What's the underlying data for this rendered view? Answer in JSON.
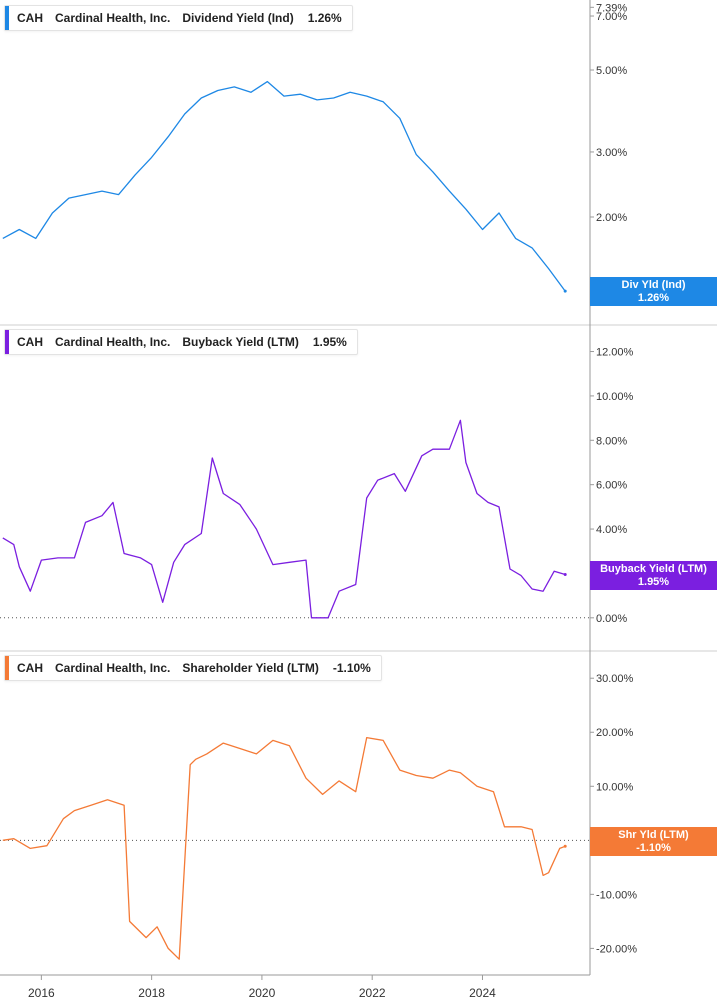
{
  "chart_data": {
    "type": "line",
    "x_ticks": [
      "2016",
      "2018",
      "2020",
      "2022",
      "2024"
    ],
    "panels": [
      {
        "ticker": "CAH",
        "company": "Cardinal Health, Inc.",
        "metric": "Dividend Yield (Ind)",
        "last_value": "1.26%",
        "tag_label": "Div Yld (Ind)",
        "tag_value": "1.26%",
        "color": "#1e88e5",
        "scale": "log",
        "y_ticks": [
          "7.39%",
          "7.00%",
          "5.00%",
          "3.00%",
          "2.00%"
        ],
        "y_tick_values": [
          7.39,
          7.0,
          5.0,
          3.0,
          2.0
        ],
        "series": {
          "x": [
            2015.3,
            2015.6,
            2015.9,
            2016.2,
            2016.5,
            2016.8,
            2017.1,
            2017.4,
            2017.7,
            2018.0,
            2018.3,
            2018.6,
            2018.9,
            2019.2,
            2019.5,
            2019.8,
            2020.1,
            2020.4,
            2020.7,
            2021.0,
            2021.3,
            2021.6,
            2021.9,
            2022.2,
            2022.5,
            2022.8,
            2023.1,
            2023.4,
            2023.7,
            2024.0,
            2024.3,
            2024.6,
            2024.9,
            2025.2,
            2025.5
          ],
          "y": [
            1.75,
            1.85,
            1.75,
            2.05,
            2.25,
            2.3,
            2.35,
            2.3,
            2.6,
            2.9,
            3.3,
            3.8,
            4.2,
            4.4,
            4.5,
            4.35,
            4.65,
            4.25,
            4.3,
            4.15,
            4.2,
            4.35,
            4.25,
            4.1,
            3.7,
            2.95,
            2.65,
            2.35,
            2.1,
            1.85,
            2.05,
            1.75,
            1.65,
            1.45,
            1.26
          ]
        }
      },
      {
        "ticker": "CAH",
        "company": "Cardinal Health, Inc.",
        "metric": "Buyback Yield (LTM)",
        "last_value": "1.95%",
        "tag_label": "Buyback Yield (LTM)",
        "tag_value": "1.95%",
        "color": "#7b1fe0",
        "scale": "linear",
        "ylim": [
          -1.0,
          12.7
        ],
        "y_ticks": [
          "12.00%",
          "10.00%",
          "8.00%",
          "6.00%",
          "4.00%",
          "0.00%"
        ],
        "y_tick_values": [
          12,
          10,
          8,
          6,
          4,
          0
        ],
        "series": {
          "x": [
            2015.3,
            2015.5,
            2015.6,
            2015.8,
            2016.0,
            2016.3,
            2016.6,
            2016.8,
            2017.1,
            2017.3,
            2017.5,
            2017.8,
            2018.0,
            2018.2,
            2018.4,
            2018.6,
            2018.9,
            2019.1,
            2019.3,
            2019.6,
            2019.9,
            2020.2,
            2020.5,
            2020.8,
            2020.9,
            2021.2,
            2021.4,
            2021.7,
            2021.9,
            2022.1,
            2022.4,
            2022.6,
            2022.9,
            2023.1,
            2023.4,
            2023.6,
            2023.7,
            2023.9,
            2024.1,
            2024.3,
            2024.5,
            2024.7,
            2024.9,
            2025.1,
            2025.3,
            2025.5
          ],
          "y": [
            3.6,
            3.3,
            2.3,
            1.2,
            2.6,
            2.7,
            2.7,
            4.3,
            4.6,
            5.2,
            2.9,
            2.7,
            2.4,
            0.7,
            2.5,
            3.3,
            3.8,
            7.2,
            5.6,
            5.1,
            4.0,
            2.4,
            2.5,
            2.6,
            0.0,
            0.0,
            1.2,
            1.5,
            5.4,
            6.2,
            6.5,
            5.7,
            7.3,
            7.6,
            7.6,
            8.9,
            7.0,
            5.6,
            5.2,
            5.0,
            2.2,
            1.9,
            1.3,
            1.2,
            2.1,
            1.95
          ]
        }
      },
      {
        "ticker": "CAH",
        "company": "Cardinal Health, Inc.",
        "metric": "Shareholder Yield (LTM)",
        "last_value": "-1.10%",
        "tag_label": "Shr Yld (LTM)",
        "tag_value": "-1.10%",
        "color": "#f47a36",
        "scale": "linear",
        "ylim": [
          -24.0,
          33.0
        ],
        "y_ticks": [
          "30.00%",
          "20.00%",
          "10.00%",
          "-10.00%",
          "-20.00%"
        ],
        "y_tick_values": [
          30,
          20,
          10,
          -10,
          -20
        ],
        "series": {
          "x": [
            2015.3,
            2015.5,
            2015.8,
            2016.1,
            2016.4,
            2016.6,
            2016.9,
            2017.2,
            2017.5,
            2017.6,
            2017.9,
            2018.1,
            2018.3,
            2018.5,
            2018.7,
            2018.8,
            2019.0,
            2019.3,
            2019.6,
            2019.9,
            2020.2,
            2020.5,
            2020.8,
            2021.1,
            2021.4,
            2021.7,
            2021.9,
            2022.2,
            2022.5,
            2022.8,
            2023.1,
            2023.4,
            2023.6,
            2023.9,
            2024.2,
            2024.4,
            2024.7,
            2024.9,
            2025.1,
            2025.2,
            2025.4,
            2025.5
          ],
          "y": [
            0.0,
            0.3,
            -1.5,
            -1.0,
            4.0,
            5.5,
            6.5,
            7.5,
            6.5,
            -15.0,
            -18.0,
            -16.0,
            -20.0,
            -22.0,
            14.0,
            15.0,
            16.0,
            18.0,
            17.0,
            16.0,
            18.5,
            17.5,
            11.5,
            8.5,
            11.0,
            9.0,
            19.0,
            18.5,
            13.0,
            12.0,
            11.5,
            13.0,
            12.5,
            10.0,
            9.0,
            2.5,
            2.5,
            2.0,
            -6.5,
            -6.0,
            -1.5,
            -1.1
          ]
        }
      }
    ]
  }
}
